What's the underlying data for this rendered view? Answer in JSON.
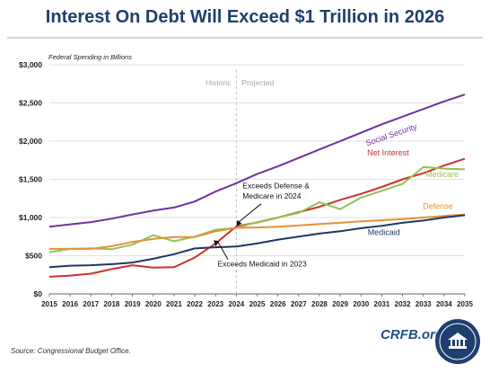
{
  "title": "Interest On Debt Will Exceed $1 Trillion in 2026",
  "source": "Source: Congressional Budget Office.",
  "brand": "CRFB.org",
  "chart_data": {
    "type": "line",
    "ylabel": "Federal Spending in Billions",
    "ylim": [
      0,
      3000
    ],
    "yticks": [
      0,
      500,
      1000,
      1500,
      2000,
      2500,
      3000
    ],
    "ytick_labels": [
      "$0",
      "$500",
      "$1,000",
      "$1,500",
      "$2,000",
      "$2,500",
      "$3,000"
    ],
    "x": [
      2015,
      2016,
      2017,
      2018,
      2019,
      2020,
      2021,
      2022,
      2023,
      2024,
      2025,
      2026,
      2027,
      2028,
      2029,
      2030,
      2031,
      2032,
      2033,
      2034,
      2035
    ],
    "grid": "horizontal",
    "divider_x": 2024,
    "period_labels": [
      "Historic",
      "Projected"
    ],
    "series": [
      {
        "name": "Social Security",
        "color": "#7030a0",
        "values": [
          880,
          910,
          940,
          985,
          1040,
          1090,
          1130,
          1210,
          1340,
          1450,
          1570,
          1670,
          1780,
          1890,
          2000,
          2110,
          2220,
          2320,
          2420,
          2520,
          2610
        ]
      },
      {
        "name": "Net Interest",
        "color": "#d0312d",
        "values": [
          225,
          240,
          265,
          325,
          375,
          345,
          350,
          475,
          660,
          885,
          935,
          1000,
          1070,
          1140,
          1230,
          1310,
          1400,
          1500,
          1580,
          1680,
          1770
        ]
      },
      {
        "name": "Medicare",
        "color": "#92c353",
        "values": [
          545,
          590,
          595,
          585,
          645,
          770,
          690,
          750,
          840,
          865,
          940,
          1000,
          1060,
          1200,
          1110,
          1260,
          1350,
          1440,
          1660,
          1640,
          1630
        ]
      },
      {
        "name": "Defense",
        "color": "#e69138",
        "values": [
          590,
          590,
          590,
          625,
          680,
          720,
          745,
          745,
          820,
          865,
          870,
          880,
          895,
          915,
          930,
          950,
          965,
          980,
          1000,
          1020,
          1040
        ]
      },
      {
        "name": "Medicaid",
        "color": "#1f3864",
        "values": [
          350,
          370,
          375,
          390,
          410,
          460,
          520,
          595,
          610,
          620,
          660,
          710,
          750,
          790,
          820,
          860,
          890,
          930,
          960,
          1000,
          1030
        ]
      }
    ],
    "annotations": [
      {
        "text": "Exceeds Defense &",
        "text2": "Medicare in 2024",
        "x": 2024,
        "y": 885
      },
      {
        "text": "Exceeds Medicaid in 2023",
        "x": 2023,
        "y": 620
      }
    ]
  }
}
